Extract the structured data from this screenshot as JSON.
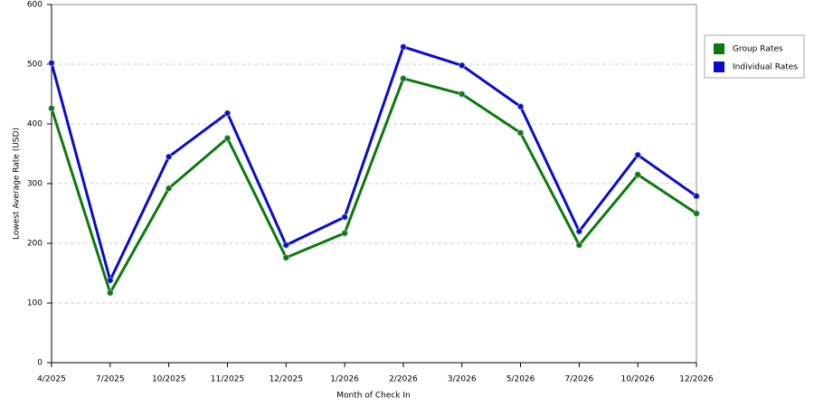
{
  "chart_data": {
    "type": "line",
    "x_label": "Month of Check In",
    "y_label": "Lowest Average Rate (USD)",
    "categories": [
      "4/2025",
      "7/2025",
      "10/2025",
      "11/2025",
      "12/2025",
      "1/2026",
      "2/2026",
      "3/2026",
      "5/2026",
      "7/2026",
      "10/2026",
      "12/2026"
    ],
    "series": [
      {
        "name": "Group Rates",
        "color": "#0a7a0a",
        "values": [
          426,
          117,
          292,
          376,
          176,
          217,
          476,
          450,
          385,
          197,
          315,
          250
        ]
      },
      {
        "name": "Individual Rates",
        "color": "#0a0ad0",
        "values": [
          502,
          138,
          345,
          418,
          197,
          244,
          529,
          498,
          429,
          220,
          348,
          279
        ]
      }
    ],
    "ylim": [
      0,
      600
    ],
    "yticks": [
      0,
      100,
      200,
      300,
      400,
      500,
      600
    ],
    "grid": true,
    "legend": "right"
  }
}
